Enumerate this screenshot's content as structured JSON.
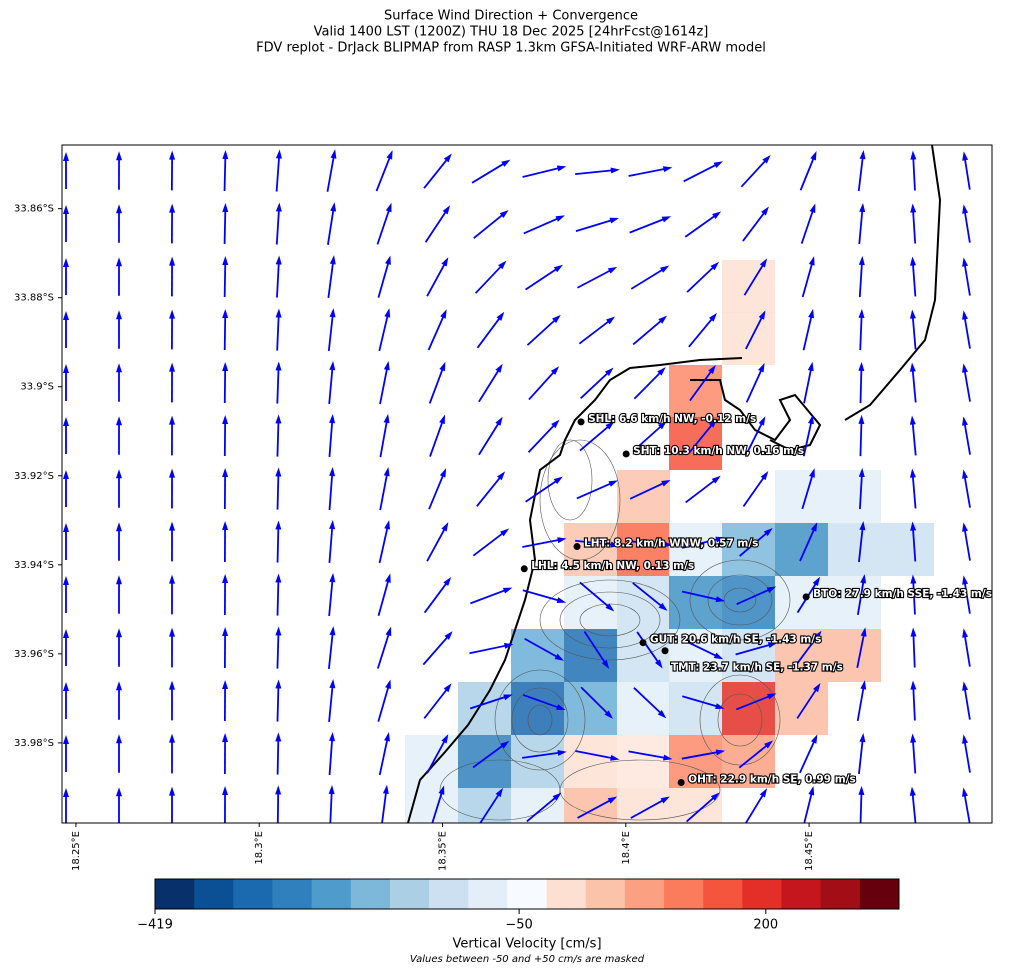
{
  "chart_data": {
    "type": "map",
    "title": [
      "Surface Wind Direction + Convergence",
      "Valid 1400 LST (1200Z) THU 18 Dec 2025 [24hrFcst@1614z]",
      "FDV replot - DrJack BLIPMAP from RASP 1.3km GFSA-Initiated WRF-ARW model"
    ],
    "xlim": [
      18.2462,
      18.4999
    ],
    "ylim": [
      -33.998,
      -33.8457
    ],
    "xticks": [
      {
        "value": 18.25,
        "label": "18.25°E"
      },
      {
        "value": 18.3,
        "label": "18.3°E"
      },
      {
        "value": 18.35,
        "label": "18.35°E"
      },
      {
        "value": 18.4,
        "label": "18.4°E"
      },
      {
        "value": 18.45,
        "label": "18.45°E"
      }
    ],
    "yticks": [
      {
        "value": -33.86,
        "label": "33.86°S"
      },
      {
        "value": -33.88,
        "label": "33.88°S"
      },
      {
        "value": -33.9,
        "label": "33.9°S"
      },
      {
        "value": -33.92,
        "label": "33.92°S"
      },
      {
        "value": -33.94,
        "label": "33.94°S"
      },
      {
        "value": -33.96,
        "label": "33.96°S"
      },
      {
        "value": -33.98,
        "label": "33.98°S"
      }
    ],
    "stations": [
      {
        "label": "SHL: 6.6 km/h NW, -0.12 m/s",
        "lon": 18.3878,
        "lat": -33.9079
      },
      {
        "label": "SHT: 10.3 km/h NW, 0.16 m/s",
        "lon": 18.4001,
        "lat": -33.9151
      },
      {
        "label": "LHT: 8.2 km/h WNW, 0.57 m/s",
        "lon": 18.3867,
        "lat": -33.9359
      },
      {
        "label": "LHL: 4.5 km/h NW, 0.13 m/s",
        "lon": 18.3723,
        "lat": -33.9409
      },
      {
        "label": "BTO: 27.9 km/h SSE, -1.43 m/s",
        "lon": 18.4492,
        "lat": -33.9472
      },
      {
        "label": "GUT: 20.6 km/h SE, -1.43 m/s",
        "lon": 18.4047,
        "lat": -33.9575
      },
      {
        "label": "TMT: 23.7 km/h SE, -1.37 m/s",
        "lon": 18.4107,
        "lat": -33.9593
      },
      {
        "label": "OHT: 22.9 km/h SE, 0.99 m/s",
        "lon": 18.4151,
        "lat": -33.9889
      }
    ],
    "wind_color": "#0000ff",
    "colorbar": {
      "label": "Vertical Velocity [cm/s]",
      "note": "Values between -50 and +50 cm/s are masked",
      "clim": [
        -419,
        335
      ],
      "ticks": [
        {
          "value": -419,
          "label": "−419"
        },
        {
          "value": -50,
          "label": "−50"
        },
        {
          "value": 200,
          "label": "200"
        }
      ],
      "colors": [
        "#08306b",
        "#0b4f94",
        "#1b69af",
        "#3080bd",
        "#4f9bcb",
        "#7db8da",
        "#abd0e6",
        "#cde0f1",
        "#e3eef9",
        "#f7fbff",
        "#fee0d2",
        "#fcc3ab",
        "#fca082",
        "#fb7c5c",
        "#f5553c",
        "#e32f27",
        "#c4161c",
        "#a10e15",
        "#67000d"
      ]
    }
  }
}
